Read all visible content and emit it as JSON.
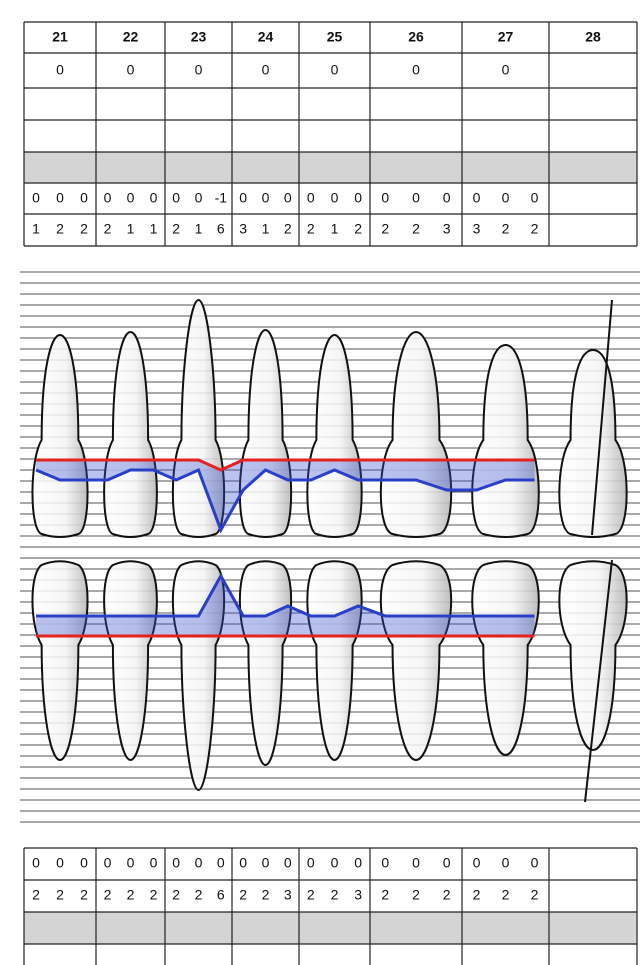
{
  "top": {
    "teeth": [
      "21",
      "22",
      "23",
      "24",
      "25",
      "26",
      "27",
      "28"
    ],
    "mobility": [
      0,
      0,
      0,
      0,
      0,
      0,
      0
    ],
    "gingival_margin": [
      [
        0,
        0,
        0
      ],
      [
        0,
        0,
        0
      ],
      [
        0,
        0,
        -1
      ],
      [
        0,
        0,
        0
      ],
      [
        0,
        0,
        0
      ],
      [
        0,
        0,
        0
      ],
      [
        0,
        0,
        0
      ]
    ],
    "probing_depth": [
      [
        1,
        2,
        2
      ],
      [
        2,
        1,
        1
      ],
      [
        2,
        1,
        6
      ],
      [
        3,
        1,
        2
      ],
      [
        2,
        1,
        2
      ],
      [
        2,
        2,
        3
      ],
      [
        3,
        2,
        2
      ]
    ]
  },
  "bottom": {
    "gingival_margin": [
      [
        0,
        0,
        0
      ],
      [
        0,
        0,
        0
      ],
      [
        0,
        0,
        0
      ],
      [
        0,
        0,
        0
      ],
      [
        0,
        0,
        0
      ],
      [
        0,
        0,
        0
      ],
      [
        0,
        0,
        0
      ]
    ],
    "probing_depth": [
      [
        2,
        2,
        2
      ],
      [
        2,
        2,
        2
      ],
      [
        2,
        2,
        6
      ],
      [
        2,
        2,
        3
      ],
      [
        2,
        2,
        3
      ],
      [
        2,
        2,
        2
      ],
      [
        2,
        2,
        2
      ]
    ]
  }
}
